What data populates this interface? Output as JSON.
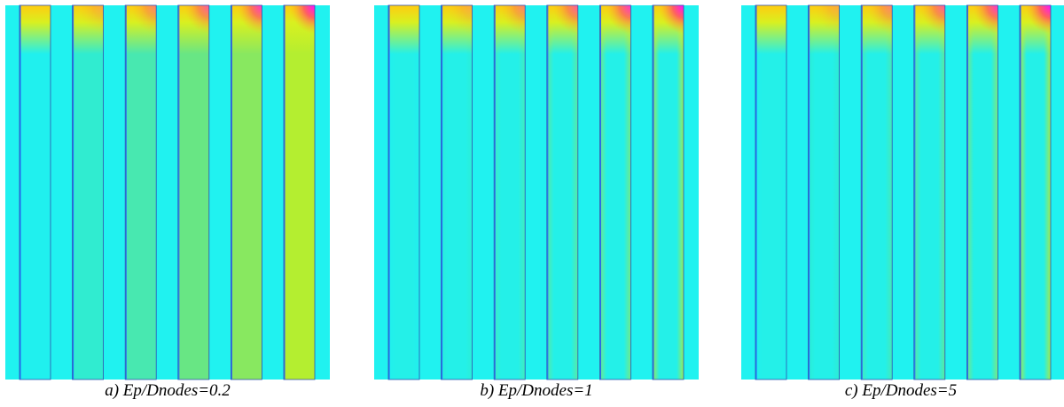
{
  "panels": [
    {
      "caption": "a) Ep/Dnodes=0.2"
    },
    {
      "caption": "b) Ep/Dnodes=1"
    },
    {
      "caption": "c) Ep/Dnodes=5"
    }
  ]
}
